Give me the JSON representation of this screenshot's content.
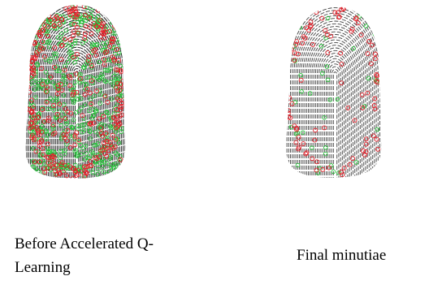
{
  "captions": {
    "left": "Before Accelerated Q-\nLearning",
    "right": "Final minutiae"
  },
  "colors": {
    "ridge": "#111111",
    "minutia_red": "#e8202a",
    "minutia_green": "#27c63b",
    "background": "#ffffff"
  },
  "panels": {
    "left": {
      "name": "fingerprint-before",
      "red_minutiae_density": "high",
      "green_minutiae_density": "high"
    },
    "right": {
      "name": "fingerprint-final",
      "red_minutiae_density": "sparse",
      "green_minutiae_density": "sparse"
    }
  }
}
